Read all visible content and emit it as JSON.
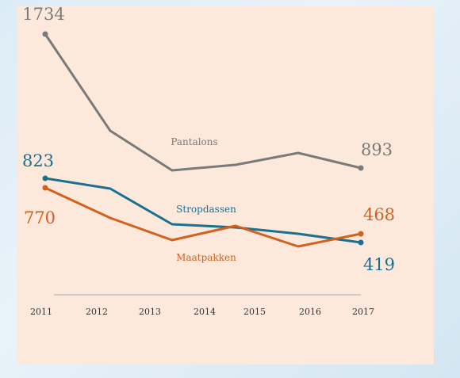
{
  "chart_data": {
    "type": "line",
    "title": "",
    "xlabel": "",
    "ylabel": "",
    "x": [
      "2011",
      "2012",
      "2013",
      "2014",
      "2015",
      "2016",
      "2017"
    ],
    "ylim": [
      300,
      1800
    ],
    "grid": false,
    "series": [
      {
        "name": "Pantalons",
        "color": "#7a7a7a",
        "values": [
          1734,
          1150,
          930,
          950,
          990,
          1030,
          893
        ],
        "start_label": "1734",
        "end_label": "893"
      },
      {
        "name": "Stropdassen",
        "color": "#1c6f8f",
        "values": [
          823,
          790,
          620,
          610,
          595,
          570,
          419
        ],
        "start_label": "823",
        "end_label": "419"
      },
      {
        "name": "Maatpakken",
        "color": "#d4601e",
        "values": [
          770,
          670,
          560,
          600,
          560,
          520,
          468
        ],
        "start_label": "770",
        "end_label": "468"
      }
    ]
  }
}
